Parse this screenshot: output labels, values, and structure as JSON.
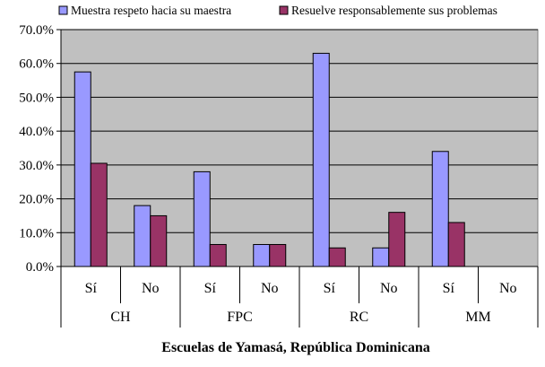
{
  "chart_data": {
    "type": "bar",
    "title": "",
    "xlabel": "Escuelas de Yamasá, República Dominicana",
    "ylabel": "",
    "ylim": [
      0,
      70
    ],
    "y_ticks": [
      "0.0%",
      "10.0%",
      "20.0%",
      "30.0%",
      "40.0%",
      "50.0%",
      "60.0%",
      "70.0%"
    ],
    "groups": [
      "CH",
      "FPC",
      "RC",
      "MM"
    ],
    "categories": [
      "Sí",
      "No",
      "Sí",
      "No",
      "Sí",
      "No",
      "Sí",
      "No"
    ],
    "series": [
      {
        "name": "Muestra respeto hacia su maestra",
        "color": "#9999ff",
        "values": [
          57.5,
          18.0,
          28.0,
          6.5,
          63.0,
          5.5,
          34.0,
          0
        ]
      },
      {
        "name": "Resuelve responsablemente sus problemas",
        "color": "#993366",
        "values": [
          30.5,
          15.0,
          6.5,
          6.5,
          5.5,
          16.0,
          13.0,
          0
        ]
      }
    ],
    "plot_background": "#c0c0c0",
    "grid": true,
    "legend": "top"
  }
}
